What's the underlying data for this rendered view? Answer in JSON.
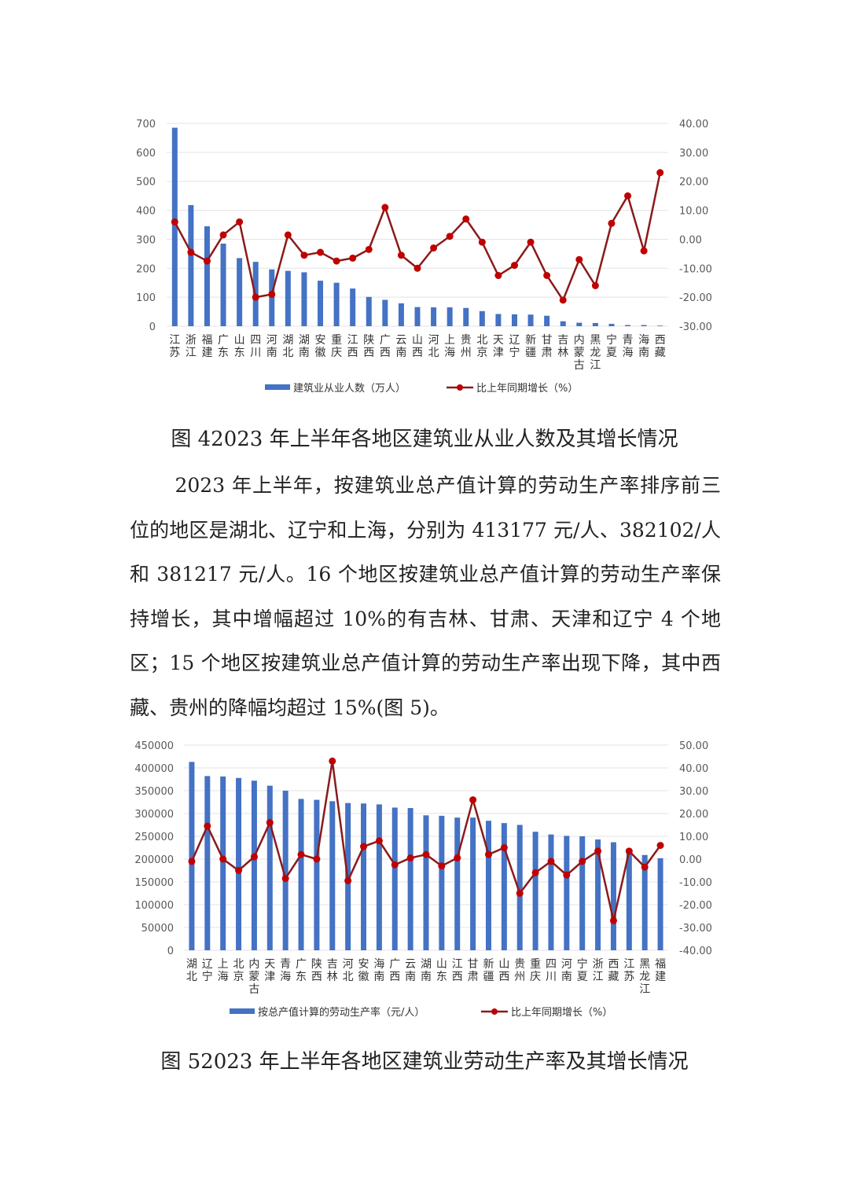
{
  "chart_data": [
    {
      "type": "bar+line",
      "categories": [
        "江苏",
        "浙江",
        "福建",
        "广东",
        "山东",
        "四川",
        "河南",
        "湖北",
        "湖南",
        "安徽",
        "重庆",
        "江西",
        "陕西",
        "广西",
        "云南",
        "山西",
        "河北",
        "上海",
        "贵州",
        "北京",
        "天津",
        "辽宁",
        "新疆",
        "甘肃",
        "吉林",
        "内蒙古",
        "黑龙江",
        "宁夏",
        "青海",
        "海南",
        "西藏"
      ],
      "series": [
        {
          "name": "建筑业从业人数（万人）",
          "type": "bar",
          "axis": "left",
          "color": "#4472C4",
          "values": [
            685,
            418,
            345,
            285,
            235,
            222,
            196,
            191,
            186,
            157,
            150,
            130,
            101,
            91,
            79,
            66,
            65,
            65,
            63,
            52,
            42,
            41,
            40,
            36,
            17,
            12,
            11,
            8,
            4,
            4,
            2
          ]
        },
        {
          "name": "比上年同期增长（%）",
          "type": "line",
          "axis": "right",
          "color": "#C00000",
          "values": [
            6,
            -4.5,
            -7.5,
            1.5,
            6,
            -20,
            -19,
            1.5,
            -5.5,
            -4.5,
            -7.5,
            -6.5,
            -3.5,
            11,
            -5.5,
            -10,
            -3,
            1,
            7,
            -1,
            -12.5,
            -9,
            -1,
            -12.5,
            -21,
            -7,
            -16,
            5.5,
            15,
            -4,
            23
          ]
        }
      ],
      "y_left": {
        "range": [
          0,
          700
        ],
        "ticks": [
          "0",
          "100",
          "200",
          "300",
          "400",
          "500",
          "600",
          "700"
        ]
      },
      "y_right": {
        "range": [
          -30,
          40
        ],
        "ticks": [
          "-30.00",
          "-20.00",
          "-10.00",
          "0.00",
          "10.00",
          "20.00",
          "30.00",
          "40.00"
        ]
      },
      "grid": true,
      "legend": "bottom"
    },
    {
      "type": "bar+line",
      "categories": [
        "湖北",
        "辽宁",
        "上海",
        "北京",
        "内蒙古",
        "天津",
        "青海",
        "广东",
        "陕西",
        "吉林",
        "河北",
        "安徽",
        "海南",
        "广西",
        "云南",
        "湖南",
        "山东",
        "江西",
        "甘肃",
        "新疆",
        "山西",
        "贵州",
        "重庆",
        "四川",
        "河南",
        "宁夏",
        "浙江",
        "西藏",
        "江苏",
        "黑龙江",
        "福建"
      ],
      "series": [
        {
          "name": "按总产值计算的劳动生产率（元/人）",
          "type": "bar",
          "axis": "left",
          "color": "#4472C4",
          "values": [
            413177,
            382102,
            381217,
            378000,
            372000,
            361000,
            350000,
            332000,
            330000,
            327000,
            323000,
            322000,
            320000,
            313000,
            312000,
            296000,
            295000,
            291000,
            291000,
            284000,
            279000,
            275000,
            260000,
            254000,
            251000,
            250000,
            243000,
            237000,
            215000,
            209000,
            202000
          ]
        },
        {
          "name": "比上年同期增长（%）",
          "type": "line",
          "axis": "right",
          "color": "#C00000",
          "values": [
            -1,
            14.5,
            0,
            -5,
            1,
            16,
            -8.5,
            2,
            0,
            43,
            -9.5,
            5.5,
            8,
            -2.5,
            0.5,
            2,
            -3,
            0.5,
            26,
            2,
            5,
            -15,
            -6,
            -1,
            -7,
            -1,
            3.5,
            -27,
            3.5,
            -3.5,
            6
          ]
        }
      ],
      "y_left": {
        "range": [
          0,
          450000
        ],
        "ticks": [
          "0",
          "50000",
          "100000",
          "150000",
          "200000",
          "250000",
          "300000",
          "350000",
          "400000",
          "450000"
        ]
      },
      "y_right": {
        "range": [
          -40,
          50
        ],
        "ticks": [
          "-40.00",
          "-30.00",
          "-20.00",
          "-10.00",
          "0.00",
          "10.00",
          "20.00",
          "30.00",
          "40.00",
          "50.00"
        ]
      },
      "grid": true,
      "legend": "bottom"
    }
  ],
  "captions": {
    "fig4": "图 42023 年上半年各地区建筑业从业人数及其增长情况",
    "fig5": "图 52023 年上半年各地区建筑业劳动生产率及其增长情况"
  },
  "paragraph": "2023 年上半年，按建筑业总产值计算的劳动生产率排序前三位的地区是湖北、辽宁和上海，分别为 413177 元/人、382102/人和 381217 元/人。16 个地区按建筑业总产值计算的劳动生产率保持增长，其中增幅超过 10%的有吉林、甘肃、天津和辽宁 4 个地区；15 个地区按建筑业总产值计算的劳动生产率出现下降，其中西藏、贵州的降幅均超过 15%(图 5)。"
}
